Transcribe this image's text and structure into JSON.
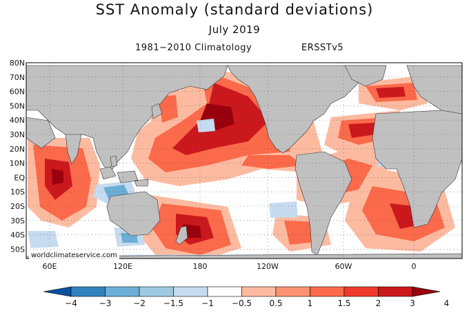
{
  "header": {
    "title": "SST Anomaly (standard deviations)",
    "date": "July 2019",
    "climatology": "1981−2010 Climatology",
    "dataset": "ERSSTv5"
  },
  "map": {
    "lat_labels": [
      "80N",
      "70N",
      "60N",
      "50N",
      "40N",
      "30N",
      "20N",
      "10N",
      "EQ",
      "10S",
      "20S",
      "30S",
      "40S",
      "50S"
    ],
    "lon_labels": [
      "60E",
      "120E",
      "180",
      "120W",
      "60W",
      "0"
    ],
    "credit": "worldclimateservice.com",
    "land_color": "#c0c0c0"
  },
  "colorbar": {
    "labels": [
      "−4",
      "−3",
      "−2",
      "−1.5",
      "−1",
      "−0.5",
      "0.5",
      "1",
      "1.5",
      "2",
      "3",
      "4"
    ],
    "colors": [
      "#08519c",
      "#3182bd",
      "#6baed6",
      "#9ecae1",
      "#c6dbef",
      "#ffffff",
      "#fcbba1",
      "#fc9272",
      "#fb6a4a",
      "#ef3b2c",
      "#cb181d",
      "#99000d"
    ]
  }
}
